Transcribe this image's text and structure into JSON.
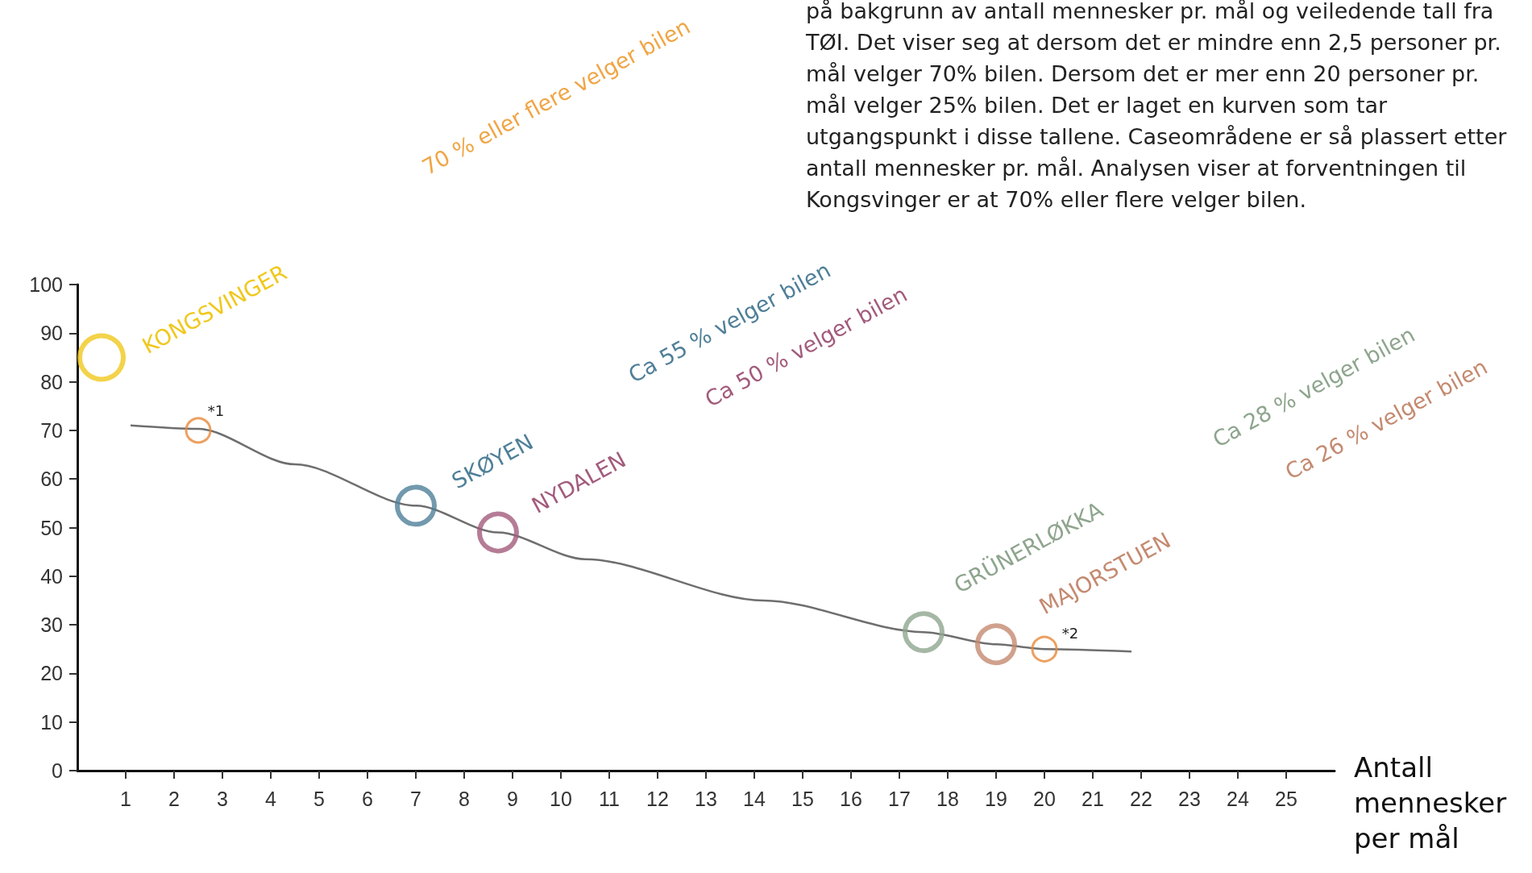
{
  "chart_data": {
    "type": "scatter",
    "xlabel": "Antall mennesker per mål",
    "xlim": [
      0,
      26
    ],
    "xticks": [
      1,
      2,
      3,
      4,
      5,
      6,
      7,
      8,
      9,
      10,
      11,
      12,
      13,
      14,
      15,
      16,
      17,
      18,
      19,
      20,
      21,
      22,
      23,
      24,
      25
    ],
    "ylim": [
      0,
      100
    ],
    "yticks": [
      0,
      10,
      20,
      30,
      40,
      50,
      60,
      70,
      80,
      90,
      100
    ],
    "grid": false,
    "legend": false,
    "annotations": [
      "på bakgrunn av antall mennesker pr. mål og veiledende tall fra TØI. Det viser seg at dersom det er mindre enn 2,5 personer pr. mål velger 70% bilen. Dersom det er mer enn 20 personer pr. mål velger 25% bilen. Det er laget en kurven som tar utgangspunkt i disse tallene. Caseområdene er så plassert etter antall mennesker pr. mål. Analysen viser at forventningen til Kongsvinger er at 70% eller flere velger bilen.",
      "70 % eller flere velger bilen",
      "Ca 55 % velger bilen",
      "Ca 50 % velger bilen",
      "Ca 28 % velger bilen",
      "Ca 26 % velger bilen",
      {
        "text": "*1",
        "x": 2.5,
        "y": 70
      },
      {
        "text": "*2",
        "x": 20,
        "y": 25
      }
    ],
    "series": [
      {
        "type": "line",
        "color": "#6e6e6e",
        "marker": "none",
        "x": [
          1.1,
          2.5,
          4.5,
          7,
          8.7,
          10.5,
          14.2,
          17.5,
          19,
          20,
          21.8
        ],
        "values": [
          71,
          70.3,
          63,
          54.5,
          49,
          43.5,
          35,
          28.5,
          26,
          25,
          24.5
        ]
      },
      {
        "type": "scatter",
        "color": "#e8883a",
        "marker": "circle",
        "x": [
          2.5,
          20
        ],
        "values": [
          70,
          25
        ]
      },
      {
        "type": "scatter",
        "name": "KONGSVINGER",
        "color": "#f0c81e",
        "marker": "circle",
        "x": [
          0.5
        ],
        "values": [
          85
        ]
      },
      {
        "type": "scatter",
        "name": "SKØYEN",
        "color": "#4f7f98",
        "marker": "circle",
        "x": [
          7
        ],
        "values": [
          54.5
        ]
      },
      {
        "type": "scatter",
        "name": "NYDALEN",
        "color": "#a25b7c",
        "marker": "circle",
        "x": [
          8.7
        ],
        "values": [
          49
        ]
      },
      {
        "type": "scatter",
        "name": "GRÜNERLØKKA",
        "color": "#8ea58e",
        "marker": "circle",
        "x": [
          17.5
        ],
        "values": [
          28.5
        ]
      },
      {
        "type": "scatter",
        "name": "MAJORSTUEN",
        "color": "#c48a70",
        "marker": "circle",
        "x": [
          19
        ],
        "values": [
          26
        ]
      }
    ]
  }
}
